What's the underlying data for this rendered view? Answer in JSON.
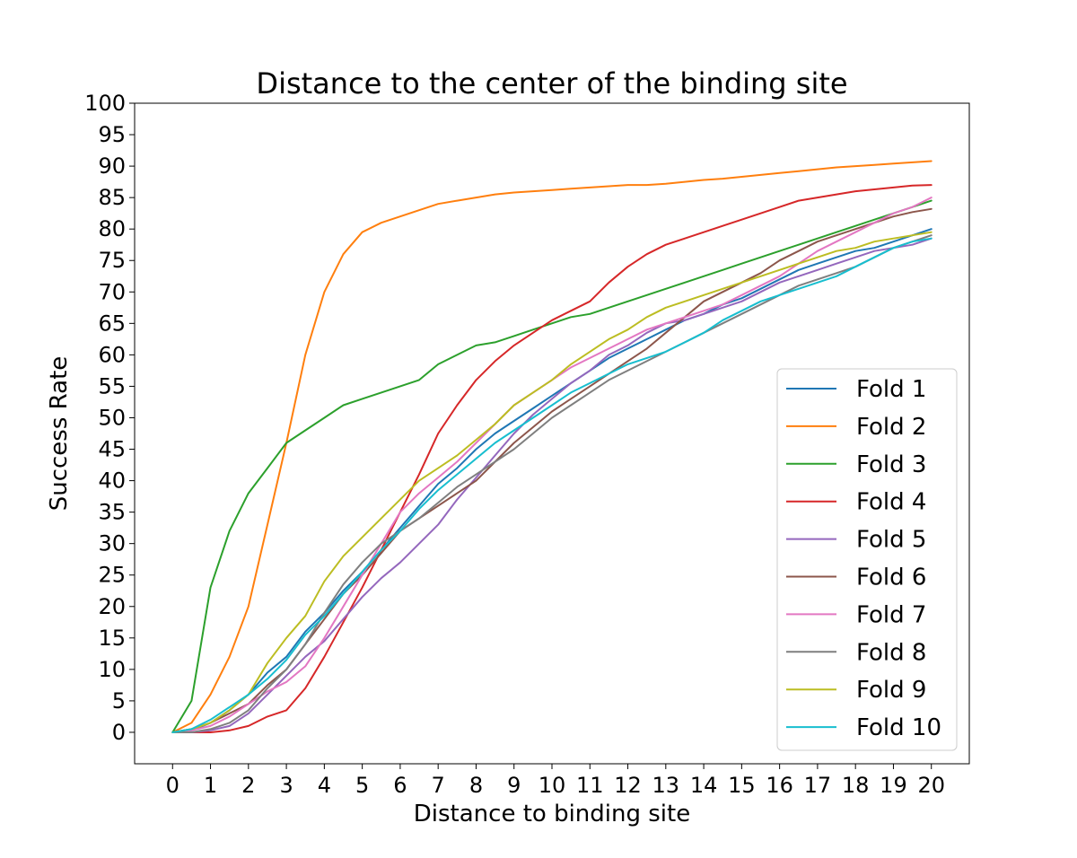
{
  "chart_data": {
    "type": "line",
    "title": "Distance to the center of the binding site",
    "xlabel": "Distance to binding site",
    "ylabel": "Success Rate",
    "xlim": [
      -1,
      21
    ],
    "ylim": [
      -5,
      100
    ],
    "xticks": [
      "0",
      "1",
      "2",
      "3",
      "4",
      "5",
      "6",
      "7",
      "8",
      "9",
      "10",
      "11",
      "12",
      "13",
      "14",
      "15",
      "16",
      "17",
      "18",
      "19",
      "20"
    ],
    "yticks": [
      "0",
      "5",
      "10",
      "15",
      "20",
      "25",
      "30",
      "35",
      "40",
      "45",
      "50",
      "55",
      "60",
      "65",
      "70",
      "75",
      "80",
      "85",
      "90",
      "95",
      "100"
    ],
    "grid": false,
    "legend_position": "lower-right",
    "x": [
      0,
      0.5,
      1,
      1.5,
      2,
      2.5,
      3,
      3.5,
      4,
      4.5,
      5,
      5.5,
      6,
      6.5,
      7,
      7.5,
      8,
      8.5,
      9,
      9.5,
      10,
      10.5,
      11,
      11.5,
      12,
      12.5,
      13,
      13.5,
      14,
      14.5,
      15,
      15.5,
      16,
      16.5,
      17,
      17.5,
      18,
      18.5,
      19,
      19.5,
      20
    ],
    "series": [
      {
        "name": "Fold 1",
        "color": "#1f77b4",
        "values": [
          0,
          0.3,
          1.5,
          3.5,
          6,
          9.5,
          12,
          16,
          19,
          22.5,
          25.5,
          29,
          32.5,
          36,
          39.5,
          42,
          45,
          47.5,
          49.5,
          51.5,
          53.5,
          55.5,
          57.5,
          59.5,
          61,
          62.5,
          64,
          65.5,
          66.5,
          68,
          69,
          70.5,
          72,
          73.5,
          74.5,
          75.5,
          76.5,
          77,
          78,
          79,
          80
        ]
      },
      {
        "name": "Fold 2",
        "color": "#ff7f0e",
        "values": [
          0,
          1.5,
          6,
          12,
          20,
          33,
          46,
          60,
          70,
          76,
          79.5,
          81,
          82,
          83,
          84,
          84.5,
          85,
          85.5,
          85.8,
          86,
          86.2,
          86.4,
          86.6,
          86.8,
          87,
          87,
          87.2,
          87.5,
          87.8,
          88,
          88.3,
          88.6,
          88.9,
          89.2,
          89.5,
          89.8,
          90,
          90.2,
          90.4,
          90.6,
          90.8
        ]
      },
      {
        "name": "Fold 3",
        "color": "#2ca02c",
        "values": [
          0,
          5,
          23,
          32,
          38,
          42,
          46,
          48,
          50,
          52,
          53,
          54,
          55,
          56,
          58.5,
          60,
          61.5,
          62,
          63,
          64,
          65,
          66,
          66.5,
          67.5,
          68.5,
          69.5,
          70.5,
          71.5,
          72.5,
          73.5,
          74.5,
          75.5,
          76.5,
          77.5,
          78.5,
          79.5,
          80.5,
          81.5,
          82.5,
          83.5,
          84.5
        ]
      },
      {
        "name": "Fold 4",
        "color": "#d62728",
        "values": [
          0,
          0,
          0,
          0.3,
          1,
          2.5,
          3.5,
          7,
          12,
          17.5,
          23,
          29,
          35,
          41,
          47.5,
          52,
          56,
          59,
          61.5,
          63.5,
          65.5,
          67,
          68.5,
          71.5,
          74,
          76,
          77.5,
          78.5,
          79.5,
          80.5,
          81.5,
          82.5,
          83.5,
          84.5,
          85,
          85.5,
          86,
          86.3,
          86.6,
          86.9,
          87
        ]
      },
      {
        "name": "Fold 5",
        "color": "#9467bd",
        "values": [
          0,
          0,
          0.3,
          1,
          3,
          6,
          9,
          12,
          14.5,
          18,
          21.5,
          24.5,
          27,
          30,
          33,
          37,
          40.5,
          44,
          47.5,
          50.5,
          53,
          55.5,
          57.5,
          60,
          61.5,
          63.5,
          65,
          65.5,
          66.5,
          67.5,
          68.5,
          70,
          71.5,
          72.5,
          73.5,
          74.5,
          75.5,
          76.5,
          77,
          77.5,
          78.5
        ]
      },
      {
        "name": "Fold 6",
        "color": "#8c564b",
        "values": [
          0,
          0.5,
          1.5,
          3,
          4.5,
          7.5,
          10,
          14,
          18,
          22,
          25,
          28.5,
          32,
          34,
          36,
          38,
          40,
          43,
          46,
          48.5,
          51,
          53,
          55,
          57,
          59,
          61,
          63.5,
          66,
          68.5,
          70,
          71.5,
          73,
          75,
          76.5,
          78,
          79,
          80,
          81,
          82,
          82.7,
          83.2
        ]
      },
      {
        "name": "Fold 7",
        "color": "#e377c2",
        "values": [
          0,
          0.3,
          1,
          2.5,
          4.5,
          6.5,
          8,
          10.5,
          15,
          20,
          25,
          30,
          35,
          38,
          40.5,
          43,
          46,
          49,
          52,
          54,
          56,
          58,
          59.5,
          61,
          62.5,
          64,
          65,
          66,
          67,
          68,
          69.5,
          71,
          72.5,
          74.5,
          76.5,
          78,
          79.5,
          81,
          82.5,
          83.5,
          85
        ]
      },
      {
        "name": "Fold 8",
        "color": "#7f7f7f",
        "values": [
          0,
          0,
          0.5,
          1.5,
          3.5,
          7,
          10,
          14,
          19,
          23.5,
          27,
          30,
          32,
          34,
          36.5,
          39,
          41,
          43,
          45,
          47.5,
          50,
          52,
          54,
          56,
          57.5,
          59,
          60.5,
          62,
          63.5,
          65,
          66.5,
          68,
          69.5,
          71,
          72,
          73,
          74,
          75.5,
          77,
          78,
          79
        ]
      },
      {
        "name": "Fold 9",
        "color": "#bcbd22",
        "values": [
          0,
          0.5,
          1.5,
          3.5,
          6,
          11,
          15,
          18.5,
          24,
          28,
          31,
          34,
          37,
          40,
          42,
          44,
          46.5,
          49,
          52,
          54,
          56,
          58.5,
          60.5,
          62.5,
          64,
          66,
          67.5,
          68.5,
          69.5,
          70.5,
          71.5,
          72.5,
          73.5,
          74.5,
          75.5,
          76.5,
          77,
          78,
          78.5,
          79,
          79.5
        ]
      },
      {
        "name": "Fold 10",
        "color": "#17becf",
        "values": [
          0,
          0.5,
          2,
          4,
          6,
          8.5,
          11.5,
          15.5,
          18.5,
          22,
          25.5,
          29,
          32,
          35.5,
          38.5,
          41,
          43.5,
          46,
          48,
          50,
          52,
          54,
          55.5,
          57,
          58.5,
          59.5,
          60.5,
          62,
          63.5,
          65.5,
          67,
          68.5,
          69.5,
          70.5,
          71.5,
          72.5,
          74,
          75.5,
          77,
          78,
          78.5
        ]
      }
    ]
  }
}
